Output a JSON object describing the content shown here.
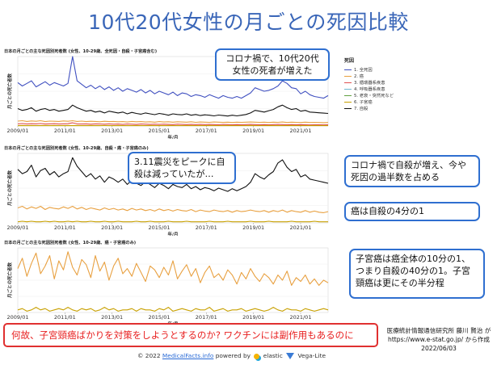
{
  "title": "10代20代女性の月ごとの死因比較",
  "axis_labels": {
    "ylabel": "月ごとの死亡者数",
    "xlabel": "年/月"
  },
  "x_ticks": [
    "2009/01",
    "2011/01",
    "2013/01",
    "2015/01",
    "2017/01",
    "2019/01",
    "2021/01"
  ],
  "legend": {
    "title": "死因",
    "items": [
      {
        "label": "1. 全死因",
        "color": "#4050c0"
      },
      {
        "label": "2. 癌",
        "color": "#e8a040"
      },
      {
        "label": "3. 循環器系疾患",
        "color": "#e05050"
      },
      {
        "label": "4. 呼吸器系疾患",
        "color": "#70b8d0"
      },
      {
        "label": "5. 老衰・突然死など",
        "color": "#60a040"
      },
      {
        "label": "6. 子宮癌",
        "color": "#c8a000"
      },
      {
        "label": "7. 自殺",
        "color": "#111111"
      }
    ]
  },
  "callouts": {
    "corona_deaths": "コロナ禍で、10代20代女性の死者が増えた",
    "quake": "3.11震災をピークに自殺は減っていたが…",
    "corona_suicide": "コロナ禍で自殺が増え、今や死因の過半数を占める",
    "cancer_ratio": "癌は自殺の4分の1",
    "uterine": "子宮癌は癌全体の10分の1、つまり自殺の40分の1。子宮頸癌は更にその半分程"
  },
  "banner": "何故、子宮頸癌ばかりを対策をしようとするのか? ワクチンには副作用もあるのに",
  "credit": {
    "line1": "医療統計情報通信研究所 藤川 賢治 が",
    "line2": "https://www.e-stat.go.jp/ から作成",
    "line3": "2022/06/03"
  },
  "footer": {
    "prefix": "© 2022",
    "site": "MedicalFacts.info",
    "powered": "powered by",
    "elastic": "elastic",
    "vega": "Vega-Lite"
  },
  "chart_data": [
    {
      "type": "line",
      "title": "日本の月ごとの主な死因別死者数 (女性、10-29歳、全死因・自殺・子宮癌含む)",
      "xlabel": "年/月",
      "ylabel": "月ごとの死亡者数",
      "x_range": [
        "2009/01",
        "2022/03"
      ],
      "ylim": [
        0,
        400
      ],
      "series": [
        {
          "name": "1. 全死因",
          "values": [
            250,
            230,
            245,
            260,
            225,
            240,
            255,
            235,
            250,
            240,
            230,
            245,
            400,
            260,
            240,
            220,
            235,
            215,
            230,
            210,
            225,
            205,
            220,
            200,
            215,
            205,
            195,
            210,
            190,
            205,
            185,
            200,
            190,
            180,
            195,
            175,
            190,
            185,
            170,
            180,
            175,
            165,
            180,
            170,
            160,
            175,
            165,
            160,
            170,
            160,
            175,
            190,
            220,
            210,
            200,
            205,
            215,
            230,
            260,
            245,
            220,
            215,
            185,
            200,
            180,
            170,
            165,
            160,
            175
          ]
        },
        {
          "name": "7. 自殺",
          "values": [
            100,
            90,
            95,
            105,
            85,
            95,
            100,
            90,
            95,
            85,
            90,
            95,
            120,
            105,
            95,
            85,
            90,
            80,
            85,
            75,
            85,
            80,
            75,
            80,
            70,
            78,
            72,
            68,
            75,
            70,
            65,
            72,
            68,
            62,
            70,
            66,
            64,
            70,
            62,
            66,
            60,
            64,
            62,
            58,
            63,
            60,
            57,
            62,
            58,
            62,
            66,
            75,
            90,
            85,
            80,
            88,
            95,
            110,
            120,
            105,
            95,
            100,
            85,
            90,
            80,
            78,
            76,
            74,
            72
          ]
        },
        {
          "name": "2. 癌",
          "values": [
            28,
            30,
            26,
            29,
            27,
            30,
            25,
            28,
            27,
            26,
            29,
            27,
            30,
            26,
            28,
            25,
            27,
            26,
            24,
            27,
            25,
            26,
            24,
            25,
            23,
            26,
            24,
            25,
            23,
            24,
            22,
            25,
            23,
            24,
            22,
            24,
            23,
            22,
            24,
            21,
            23,
            22,
            21,
            23,
            22,
            21,
            22,
            20,
            22,
            21,
            22,
            23,
            22,
            21,
            22,
            20,
            22,
            21,
            23,
            20,
            22,
            21,
            20,
            22,
            20,
            21,
            20,
            19,
            20
          ]
        },
        {
          "name": "3. 循環器系疾患",
          "values": [
            12,
            14,
            11,
            13,
            12,
            14,
            11,
            12,
            13,
            11,
            12,
            13,
            18,
            12,
            11,
            12,
            10,
            12,
            11,
            10,
            12,
            10,
            11,
            9,
            11,
            10,
            9,
            11,
            10,
            9,
            10,
            9,
            10,
            9,
            8,
            10,
            9,
            8,
            9,
            8,
            9,
            8,
            9,
            8,
            7,
            9,
            8,
            7,
            8,
            7,
            8,
            9,
            8,
            7,
            8,
            7,
            8,
            9,
            8,
            7,
            8,
            7,
            8,
            7,
            6,
            7,
            7,
            6,
            7
          ]
        },
        {
          "name": "6. 子宮癌",
          "values": [
            2,
            3,
            2,
            3,
            2,
            2,
            3,
            2,
            3,
            2,
            2,
            3,
            2,
            3,
            2,
            2,
            3,
            2,
            2,
            3,
            2,
            2,
            3,
            2,
            2,
            2,
            3,
            2,
            2,
            3,
            2,
            2,
            2,
            3,
            2,
            2,
            2,
            3,
            2,
            2,
            2,
            2,
            3,
            2,
            2,
            2,
            3,
            2,
            2,
            2,
            2,
            3,
            2,
            2,
            2,
            3,
            2,
            2,
            2,
            2,
            3,
            2,
            2,
            2,
            2,
            3,
            2,
            2,
            2
          ]
        }
      ]
    },
    {
      "type": "line",
      "title": "日本の月ごとの主な死因別死者数 (女性、10-29歳、自殺・癌・子宮癌のみ)",
      "xlabel": "年/月",
      "ylabel": "月ごとの死亡者数",
      "x_range": [
        "2009/01",
        "2022/03"
      ],
      "ylim": [
        0,
        130
      ],
      "series": [
        {
          "name": "7. 自殺",
          "values": [
            100,
            92,
            96,
            108,
            86,
            98,
            102,
            90,
            96,
            86,
            92,
            96,
            122,
            106,
            96,
            86,
            92,
            82,
            88,
            76,
            86,
            82,
            76,
            82,
            72,
            80,
            74,
            70,
            77,
            72,
            66,
            74,
            70,
            64,
            72,
            68,
            66,
            72,
            64,
            68,
            62,
            66,
            64,
            60,
            65,
            62,
            59,
            64,
            60,
            64,
            68,
            76,
            92,
            86,
            82,
            90,
            96,
            112,
            118,
            104,
            96,
            100,
            86,
            90,
            82,
            80,
            78,
            76,
            74
          ]
        },
        {
          "name": "2. 癌",
          "values": [
            28,
            31,
            26,
            30,
            27,
            31,
            25,
            29,
            27,
            26,
            30,
            27,
            31,
            26,
            29,
            25,
            28,
            26,
            24,
            28,
            25,
            27,
            24,
            26,
            23,
            27,
            24,
            26,
            23,
            25,
            22,
            26,
            23,
            25,
            22,
            25,
            23,
            22,
            25,
            21,
            24,
            22,
            21,
            24,
            22,
            21,
            23,
            20,
            23,
            21,
            22,
            24,
            22,
            21,
            23,
            20,
            23,
            21,
            24,
            20,
            23,
            21,
            20,
            23,
            20,
            22,
            20,
            19,
            21
          ]
        },
        {
          "name": "6. 子宮癌",
          "values": [
            2,
            3,
            2,
            3,
            2,
            2,
            3,
            2,
            3,
            2,
            2,
            3,
            2,
            3,
            2,
            2,
            3,
            2,
            2,
            3,
            2,
            2,
            3,
            2,
            2,
            2,
            3,
            2,
            2,
            3,
            2,
            2,
            2,
            3,
            2,
            2,
            2,
            3,
            2,
            2,
            2,
            2,
            3,
            2,
            2,
            2,
            3,
            2,
            2,
            2,
            2,
            3,
            2,
            2,
            2,
            3,
            2,
            2,
            2,
            2,
            3,
            2,
            2,
            2,
            2,
            3,
            2,
            2,
            2
          ]
        }
      ]
    },
    {
      "type": "line",
      "title": "日本の月ごとの主な死因別死者数 (女性、10-29歳、癌・子宮癌のみ)",
      "xlabel": "年/月",
      "ylabel": "月ごとの死亡者数",
      "x_range": [
        "2009/01",
        "2022/03"
      ],
      "ylim": [
        0,
        50
      ],
      "series": [
        {
          "name": "2. 癌",
          "values": [
            34,
            42,
            28,
            38,
            46,
            30,
            36,
            44,
            26,
            40,
            33,
            47,
            35,
            29,
            41,
            37,
            27,
            44,
            32,
            39,
            25,
            36,
            42,
            30,
            34,
            28,
            38,
            31,
            24,
            36,
            33,
            27,
            35,
            29,
            40,
            26,
            32,
            37,
            28,
            34,
            23,
            31,
            36,
            27,
            30,
            25,
            33,
            29,
            22,
            31,
            26,
            34,
            28,
            24,
            30,
            27,
            22,
            29,
            25,
            32,
            21,
            27,
            24,
            29,
            22,
            26,
            21,
            25,
            23
          ]
        },
        {
          "name": "6. 子宮癌",
          "values": [
            2,
            3,
            1,
            2,
            4,
            2,
            3,
            1,
            2,
            3,
            2,
            4,
            2,
            1,
            3,
            2,
            3,
            1,
            2,
            4,
            2,
            3,
            1,
            2,
            2,
            3,
            1,
            3,
            2,
            2,
            1,
            3,
            2,
            4,
            1,
            2,
            3,
            2,
            1,
            3,
            2,
            2,
            4,
            1,
            2,
            3,
            1,
            2,
            2,
            3,
            1,
            2,
            3,
            2,
            1,
            2,
            4,
            2,
            1,
            3,
            2,
            2,
            1,
            3,
            2,
            1,
            2,
            3,
            2
          ]
        }
      ]
    }
  ]
}
